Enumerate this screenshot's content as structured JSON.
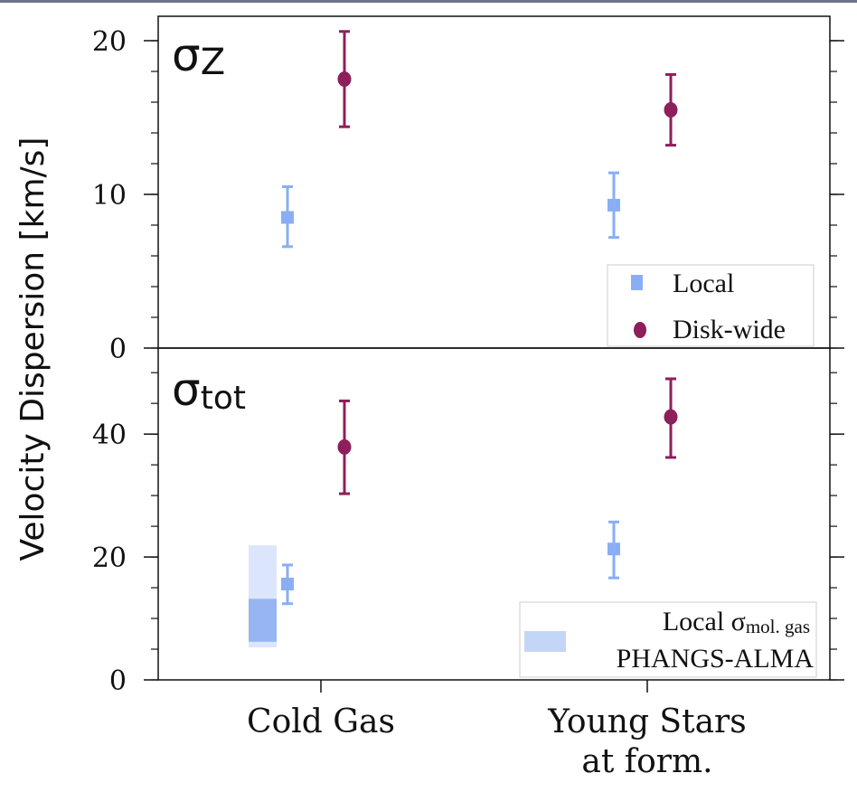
{
  "chart_data": {
    "type": "scatter",
    "ylabel": "Velocity Dispersion [km/s]",
    "categories": [
      "Cold Gas",
      "Young Stars\nat form."
    ],
    "category_lines": [
      [
        "Cold Gas"
      ],
      [
        "Young Stars",
        "at form."
      ]
    ],
    "colors": {
      "local": "#8aaef5",
      "disk": "#8e1f5a",
      "band_light": "#dbe5fb",
      "band_dark": "#97b5f3",
      "legend_band": "#c3d6f8"
    },
    "panels": [
      {
        "label_main": "σ",
        "label_sub": "Z",
        "ylim": [
          0,
          21.5
        ],
        "yticks": [
          0,
          10,
          20
        ],
        "minor_step": 2,
        "series": [
          {
            "name": "Local",
            "marker": "square",
            "values": [
              8.5,
              9.3
            ],
            "err_low": [
              6.6,
              7.2
            ],
            "err_high": [
              10.5,
              11.4
            ]
          },
          {
            "name": "Disk-wide",
            "marker": "circle",
            "values": [
              17.5,
              15.5
            ],
            "err_low": [
              14.4,
              13.2
            ],
            "err_high": [
              20.6,
              17.8
            ]
          }
        ],
        "legend": {
          "position": "bottom-right",
          "entries": [
            "Local",
            "Disk-wide"
          ]
        }
      },
      {
        "label_main": "σ",
        "label_sub": "tot",
        "ylim": [
          0,
          54
        ],
        "yticks": [
          0,
          20,
          40
        ],
        "minor_step": 5,
        "series": [
          {
            "name": "Local",
            "marker": "square",
            "values": [
              15.6,
              21.3
            ],
            "err_low": [
              12.4,
              16.6
            ],
            "err_high": [
              18.7,
              25.7
            ]
          },
          {
            "name": "Disk-wide",
            "marker": "circle",
            "values": [
              37.9,
              42.8
            ],
            "err_low": [
              30.3,
              36.2
            ],
            "err_high": [
              45.4,
              49.0
            ]
          }
        ],
        "band": {
          "name": "Local σmol. gas PHANGS-ALMA",
          "category": "Cold Gas",
          "outer": [
            5.3,
            21.9
          ],
          "inner": [
            6.2,
            13.2
          ]
        },
        "legend": {
          "position": "bottom-right",
          "line1_main": "Local σ",
          "line1_sub": "mol. gas",
          "line2": "PHANGS-ALMA"
        }
      }
    ]
  }
}
